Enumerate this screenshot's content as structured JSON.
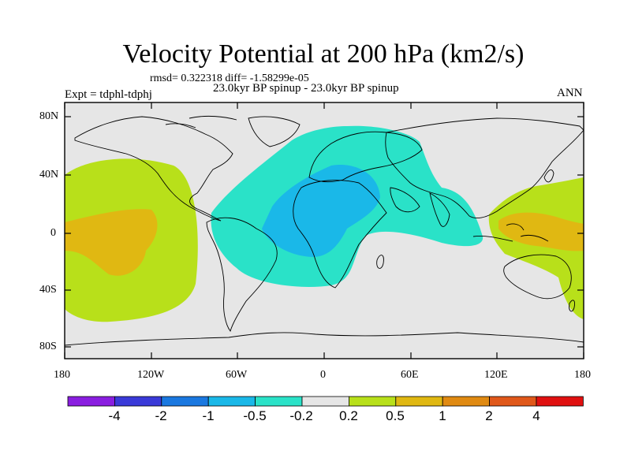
{
  "figure": {
    "title": "Velocity Potential at 200 hPa (km2/s)",
    "stats": "rmsd= 0.322318 diff= -1.58299e-05",
    "experiment": "Expt = tdphl-tdphj",
    "subtitle": "23.0kyr BP spinup - 23.0kyr BP spinup",
    "season": "ANN"
  },
  "axes": {
    "x_ticks": [
      "180",
      "120W",
      "60W",
      "0",
      "60E",
      "120E",
      "180"
    ],
    "y_ticks": [
      "80N",
      "40N",
      "0",
      "40S",
      "80S"
    ]
  },
  "colorbar": {
    "labels": [
      "-4",
      "-2",
      "-1",
      "-0.5",
      "-0.2",
      "0.2",
      "0.5",
      "1",
      "2",
      "4"
    ],
    "colors": [
      "#8a1ee0",
      "#3a3ad8",
      "#1a78e0",
      "#1ab8e8",
      "#2ae2c8",
      "#e6e6e6",
      "#b8e01a",
      "#e0b812",
      "#e08a12",
      "#e0581a",
      "#e01010"
    ]
  },
  "field_colors": {
    "background": "#e6e6e6",
    "neg_weak": "#2ae2c8",
    "neg_mid": "#1ab8e8",
    "pos_weak": "#b8e01a",
    "pos_mid": "#e0b812"
  }
}
